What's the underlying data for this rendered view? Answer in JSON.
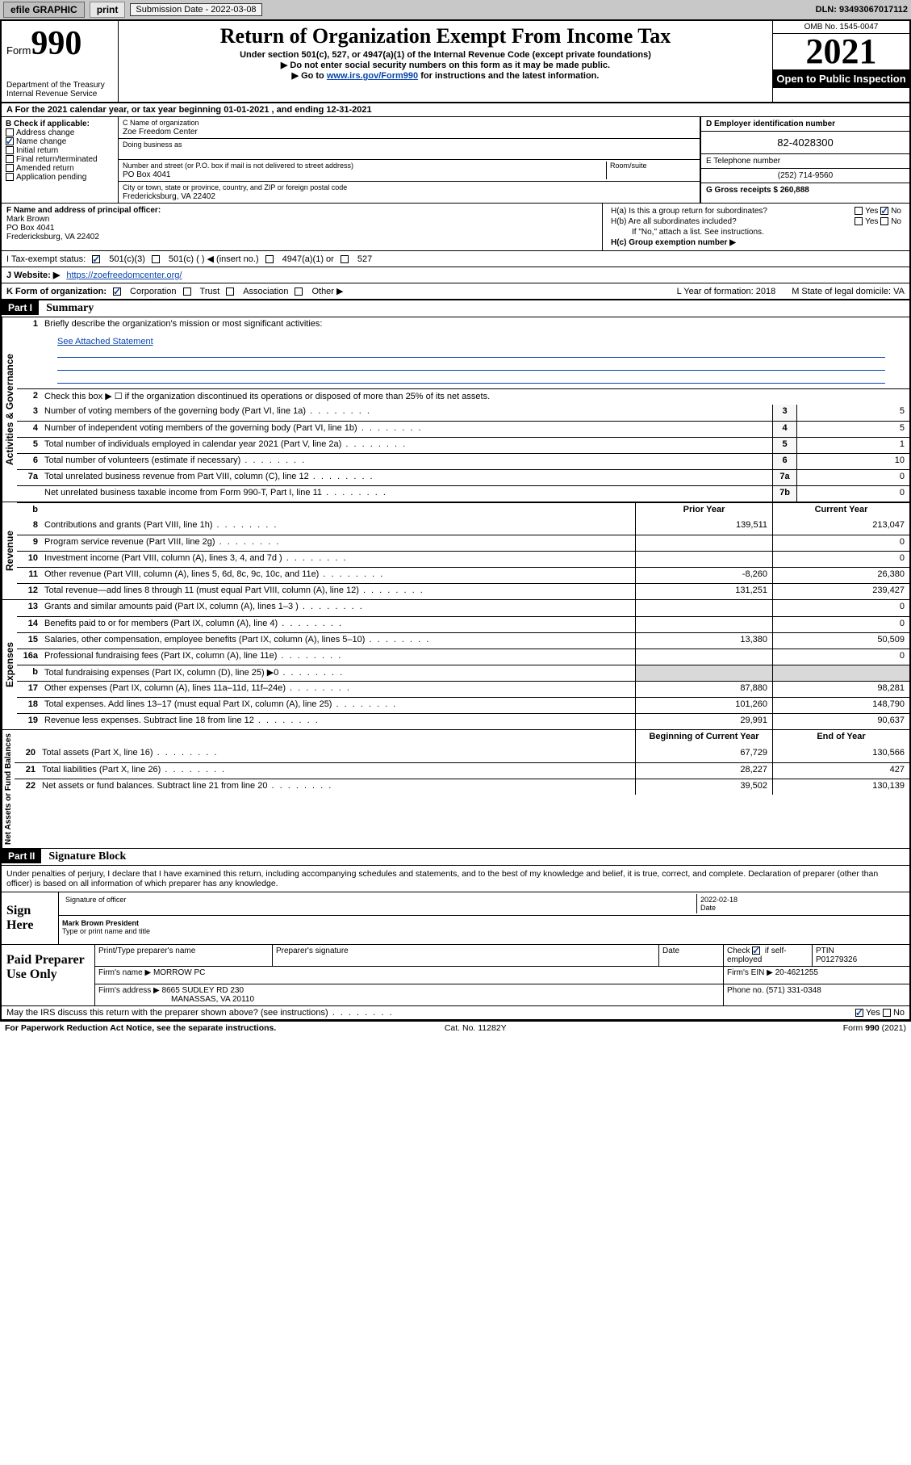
{
  "topbar": {
    "efile": "efile GRAPHIC",
    "print": "print",
    "submission_label": "Submission Date - 2022-03-08",
    "dln": "DLN: 93493067017112"
  },
  "header": {
    "form_prefix": "Form",
    "form_no": "990",
    "dept": "Department of the Treasury\nInternal Revenue Service",
    "title": "Return of Organization Exempt From Income Tax",
    "sub1": "Under section 501(c), 527, or 4947(a)(1) of the Internal Revenue Code (except private foundations)",
    "sub2": "▶ Do not enter social security numbers on this form as it may be made public.",
    "sub3_pre": "▶ Go to ",
    "sub3_link": "www.irs.gov/Form990",
    "sub3_post": " for instructions and the latest information.",
    "omb": "OMB No. 1545-0047",
    "year": "2021",
    "open": "Open to Public Inspection"
  },
  "row_a": "A For the 2021 calendar year, or tax year beginning 01-01-2021   , and ending 12-31-2021",
  "col_b": {
    "label": "B Check if applicable:",
    "items": [
      "Address change",
      "Name change",
      "Initial return",
      "Final return/terminated",
      "Amended return",
      "Application pending"
    ],
    "checked_index": 1
  },
  "col_c": {
    "name_label": "C Name of organization",
    "name": "Zoe Freedom Center",
    "dba_label": "Doing business as",
    "addr_label": "Number and street (or P.O. box if mail is not delivered to street address)",
    "addr": "PO Box 4041",
    "room_label": "Room/suite",
    "city_label": "City or town, state or province, country, and ZIP or foreign postal code",
    "city": "Fredericksburg, VA  22402"
  },
  "col_de": {
    "d_label": "D Employer identification number",
    "d_val": "82-4028300",
    "e_label": "E Telephone number",
    "e_val": "(252) 714-9560",
    "g_label": "G Gross receipts $ 260,888"
  },
  "row_f": {
    "label": "F  Name and address of principal officer:",
    "name": "Mark Brown",
    "addr1": "PO Box 4041",
    "addr2": "Fredericksburg, VA  22402"
  },
  "row_h": {
    "a": "H(a)  Is this a group return for subordinates?",
    "b": "H(b)  Are all subordinates included?",
    "b_note": "If \"No,\" attach a list. See instructions.",
    "c": "H(c)  Group exemption number ▶",
    "yes": "Yes",
    "no": "No"
  },
  "row_i": {
    "label": "I   Tax-exempt status:",
    "opts": [
      "501(c)(3)",
      "501(c) (  ) ◀ (insert no.)",
      "4947(a)(1) or",
      "527"
    ]
  },
  "row_j": {
    "label": "J   Website: ▶",
    "val": "https://zoefreedomcenter.org/"
  },
  "row_k": {
    "label": "K Form of organization:",
    "opts": [
      "Corporation",
      "Trust",
      "Association",
      "Other ▶"
    ],
    "l": "L Year of formation: 2018",
    "m": "M State of legal domicile: VA"
  },
  "part1": {
    "hdr": "Part I",
    "title": "Summary"
  },
  "summary": {
    "q1": "Briefly describe the organization's mission or most significant activities:",
    "q1_link": "See Attached Statement",
    "q2": "Check this box ▶ ☐  if the organization discontinued its operations or disposed of more than 25% of its net assets."
  },
  "gov_lines": [
    {
      "n": "3",
      "d": "Number of voting members of the governing body (Part VI, line 1a)",
      "b": "3",
      "v": "5"
    },
    {
      "n": "4",
      "d": "Number of independent voting members of the governing body (Part VI, line 1b)",
      "b": "4",
      "v": "5"
    },
    {
      "n": "5",
      "d": "Total number of individuals employed in calendar year 2021 (Part V, line 2a)",
      "b": "5",
      "v": "1"
    },
    {
      "n": "6",
      "d": "Total number of volunteers (estimate if necessary)",
      "b": "6",
      "v": "10"
    },
    {
      "n": "7a",
      "d": "Total unrelated business revenue from Part VIII, column (C), line 12",
      "b": "7a",
      "v": "0"
    },
    {
      "n": "",
      "d": "Net unrelated business taxable income from Form 990-T, Part I, line 11",
      "b": "7b",
      "v": "0"
    }
  ],
  "rev_hdr": {
    "prior": "Prior Year",
    "curr": "Current Year"
  },
  "rev_lines": [
    {
      "n": "8",
      "d": "Contributions and grants (Part VIII, line 1h)",
      "p": "139,511",
      "c": "213,047"
    },
    {
      "n": "9",
      "d": "Program service revenue (Part VIII, line 2g)",
      "p": "",
      "c": "0"
    },
    {
      "n": "10",
      "d": "Investment income (Part VIII, column (A), lines 3, 4, and 7d )",
      "p": "",
      "c": "0"
    },
    {
      "n": "11",
      "d": "Other revenue (Part VIII, column (A), lines 5, 6d, 8c, 9c, 10c, and 11e)",
      "p": "-8,260",
      "c": "26,380"
    },
    {
      "n": "12",
      "d": "Total revenue—add lines 8 through 11 (must equal Part VIII, column (A), line 12)",
      "p": "131,251",
      "c": "239,427"
    }
  ],
  "exp_lines": [
    {
      "n": "13",
      "d": "Grants and similar amounts paid (Part IX, column (A), lines 1–3 )",
      "p": "",
      "c": "0"
    },
    {
      "n": "14",
      "d": "Benefits paid to or for members (Part IX, column (A), line 4)",
      "p": "",
      "c": "0"
    },
    {
      "n": "15",
      "d": "Salaries, other compensation, employee benefits (Part IX, column (A), lines 5–10)",
      "p": "13,380",
      "c": "50,509"
    },
    {
      "n": "16a",
      "d": "Professional fundraising fees (Part IX, column (A), line 11e)",
      "p": "",
      "c": "0"
    },
    {
      "n": "b",
      "d": "Total fundraising expenses (Part IX, column (D), line 25) ▶0",
      "p": "",
      "c": "",
      "shade": true
    },
    {
      "n": "17",
      "d": "Other expenses (Part IX, column (A), lines 11a–11d, 11f–24e)",
      "p": "87,880",
      "c": "98,281"
    },
    {
      "n": "18",
      "d": "Total expenses. Add lines 13–17 (must equal Part IX, column (A), line 25)",
      "p": "101,260",
      "c": "148,790"
    },
    {
      "n": "19",
      "d": "Revenue less expenses. Subtract line 18 from line 12",
      "p": "29,991",
      "c": "90,637"
    }
  ],
  "na_hdr": {
    "b": "Beginning of Current Year",
    "e": "End of Year"
  },
  "na_lines": [
    {
      "n": "20",
      "d": "Total assets (Part X, line 16)",
      "p": "67,729",
      "c": "130,566"
    },
    {
      "n": "21",
      "d": "Total liabilities (Part X, line 26)",
      "p": "28,227",
      "c": "427"
    },
    {
      "n": "22",
      "d": "Net assets or fund balances. Subtract line 21 from line 20",
      "p": "39,502",
      "c": "130,139"
    }
  ],
  "part2": {
    "hdr": "Part II",
    "title": "Signature Block"
  },
  "sig_intro": "Under penalties of perjury, I declare that I have examined this return, including accompanying schedules and statements, and to the best of my knowledge and belief, it is true, correct, and complete. Declaration of preparer (other than officer) is based on all information of which preparer has any knowledge.",
  "sign": {
    "here": "Sign Here",
    "sig_label": "Signature of officer",
    "date": "2022-02-18",
    "date_label": "Date",
    "name": "Mark Brown  President",
    "name_label": "Type or print name and title"
  },
  "paid": {
    "label": "Paid Preparer Use Only",
    "h1": "Print/Type preparer's name",
    "h2": "Preparer's signature",
    "h3": "Date",
    "h4_pre": "Check",
    "h4_post": "if self-employed",
    "h5": "PTIN",
    "ptin": "P01279326",
    "firm_label": "Firm's name   ▶",
    "firm": "MORROW PC",
    "ein_label": "Firm's EIN ▶",
    "ein": "20-4621255",
    "addr_label": "Firm's address ▶",
    "addr1": "8665 SUDLEY RD 230",
    "addr2": "MANASSAS, VA  20110",
    "phone_label": "Phone no.",
    "phone": "(571) 331-0348"
  },
  "discuss": "May the IRS discuss this return with the preparer shown above? (see instructions)",
  "footer": {
    "left": "For Paperwork Reduction Act Notice, see the separate instructions.",
    "mid": "Cat. No. 11282Y",
    "right": "Form 990 (2021)"
  },
  "side": {
    "gov": "Activities & Governance",
    "rev": "Revenue",
    "exp": "Expenses",
    "na": "Net Assets or Fund Balances"
  }
}
